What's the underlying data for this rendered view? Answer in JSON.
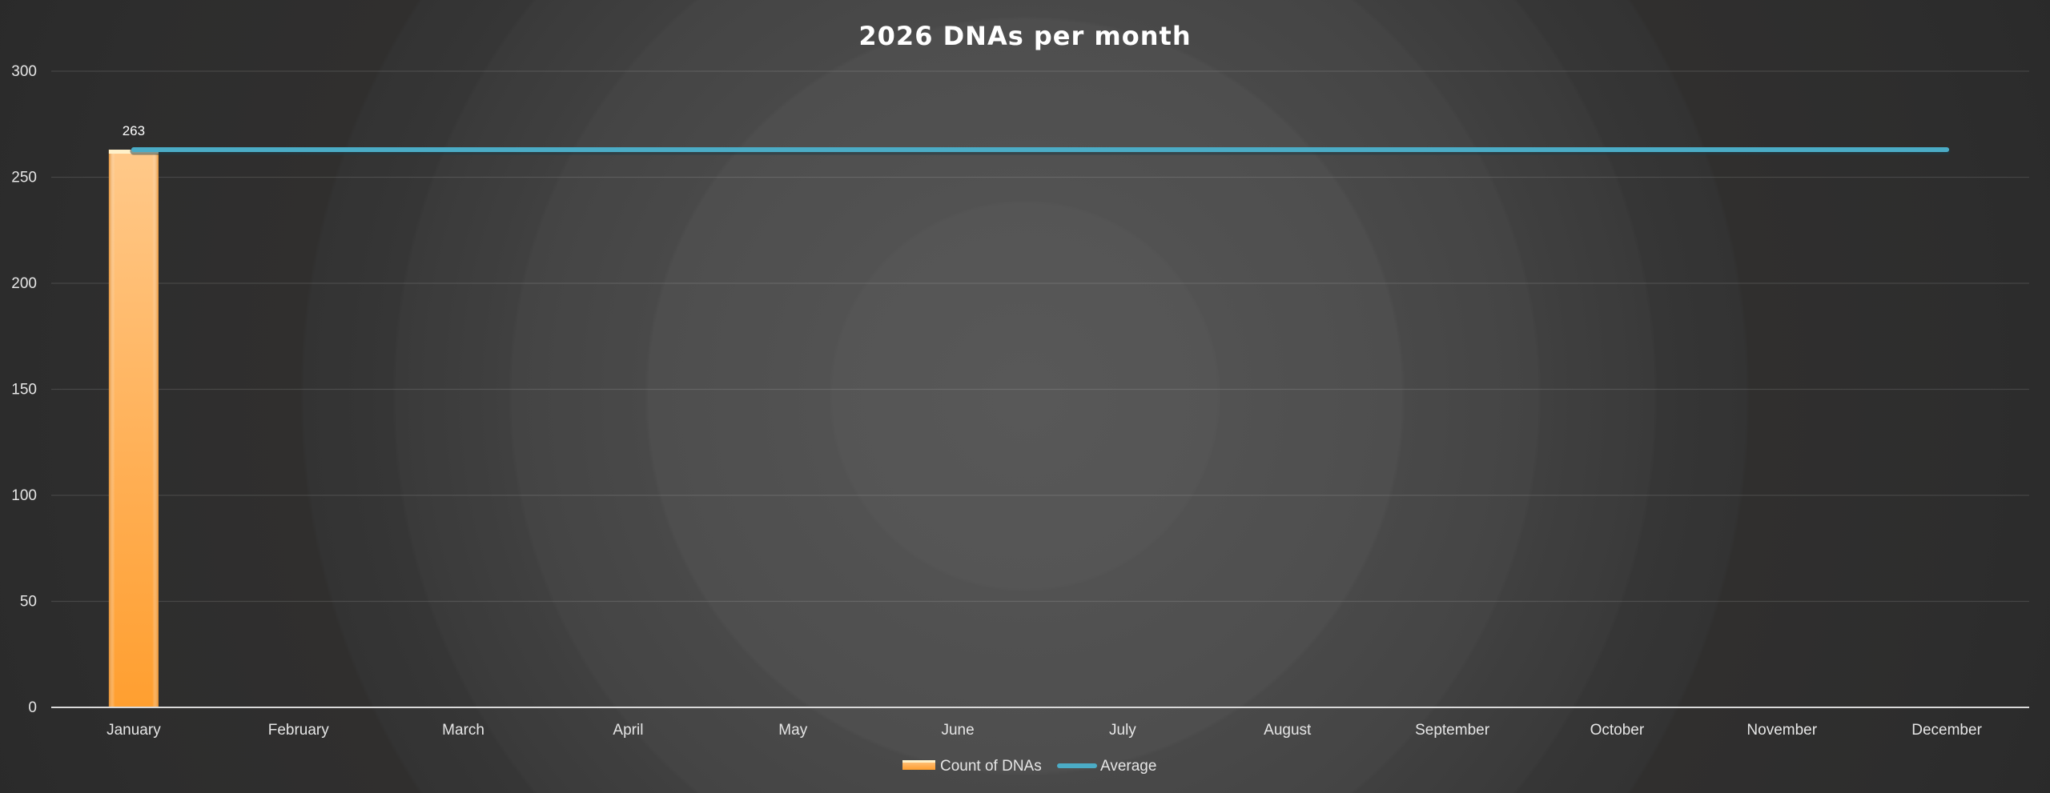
{
  "chart_data": {
    "type": "bar",
    "title": "2026 DNAs per month",
    "xlabel": "",
    "ylabel": "",
    "categories": [
      "January",
      "February",
      "March",
      "April",
      "May",
      "June",
      "July",
      "August",
      "September",
      "October",
      "November",
      "December"
    ],
    "series": [
      {
        "name": "Count of DNAs",
        "type": "bar",
        "color": "#ffa53d",
        "values": [
          263,
          null,
          null,
          null,
          null,
          null,
          null,
          null,
          null,
          null,
          null,
          null
        ],
        "data_labels": [
          "263",
          "",
          "",
          "",
          "",
          "",
          "",
          "",
          "",
          "",
          "",
          ""
        ]
      },
      {
        "name": "Average",
        "type": "line",
        "color": "#4bacc6",
        "values": [
          263,
          263,
          263,
          263,
          263,
          263,
          263,
          263,
          263,
          263,
          263,
          263
        ]
      }
    ],
    "ylim": [
      0,
      300
    ],
    "yticks": [
      0,
      50,
      100,
      150,
      200,
      250,
      300
    ],
    "grid": true,
    "legend_position": "bottom"
  }
}
